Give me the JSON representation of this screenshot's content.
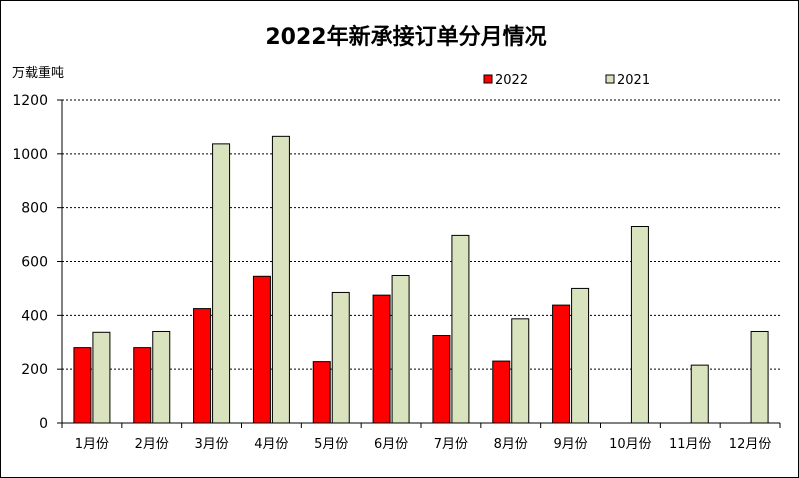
{
  "chart_data": {
    "type": "bar",
    "title": "2022年新承接订单分月情况",
    "ylabel": "万载重吨",
    "xlabel": "",
    "ylim": [
      0,
      1200
    ],
    "yticks": [
      0,
      200,
      400,
      600,
      800,
      1000,
      1200
    ],
    "grid": true,
    "legend_position": "top-right",
    "categories": [
      "1月份",
      "2月份",
      "3月份",
      "4月份",
      "5月份",
      "6月份",
      "7月份",
      "8月份",
      "9月份",
      "10月份",
      "11月份",
      "12月份"
    ],
    "series": [
      {
        "name": "2022",
        "color": "#ff0000",
        "values": [
          280,
          280,
          425,
          545,
          228,
          475,
          325,
          230,
          438,
          null,
          null,
          null
        ]
      },
      {
        "name": "2021",
        "color": "#d9e4bf",
        "values": [
          337,
          340,
          1037,
          1065,
          485,
          548,
          697,
          387,
          500,
          730,
          215,
          340
        ]
      }
    ]
  }
}
